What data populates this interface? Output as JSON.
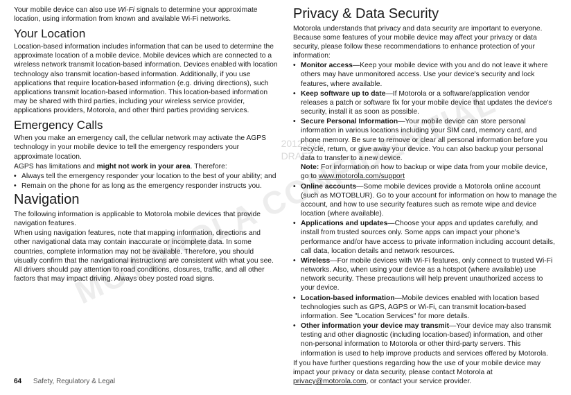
{
  "watermark": "MOTOROLA CONFIDENTIAL",
  "watermark_date": "2012.05.0",
  "watermark_draft": "DRAFT",
  "left": {
    "intro": "Your mobile device can also use Wi-Fi signals to determine your approximate location, using information from known and available Wi-Fi networks.",
    "loc_h": "Your Location",
    "loc_p": "Location-based information includes information that can be used to determine the approximate location of a mobile device. Mobile devices which are connected to a wireless network transmit location-based information. Devices enabled with location technology also transmit location-based information. Additionally, if you use applications that require location-based information (e.g. driving directions), such applications transmit location-based information. This location-based information may be shared with third parties, including your wireless service provider, applications providers, Motorola, and other third parties providing services.",
    "ec_h": "Emergency Calls",
    "ec_p1": "When you make an emergency call, the cellular network may activate the AGPS technology in your mobile device to tell the emergency responders your approximate location.",
    "ec_p2a": "AGPS has limitations and ",
    "ec_p2b": "might not work in your area",
    "ec_p2c": ". Therefore:",
    "ec_li1": "Always tell the emergency responder your location to the best of your ability; and",
    "ec_li2": "Remain on the phone for as long as the emergency responder instructs you.",
    "nav_h": "Navigation",
    "nav_p1": "The following information is applicable to Motorola mobile devices that provide navigation features.",
    "nav_p2": "When using navigation features, note that mapping information, directions and other navigational data may contain inaccurate or incomplete data. In some countries, complete information may not be available. Therefore, you should visually confirm that the navigational instructions are consistent with what you see. All drivers should pay attention to road conditions, closures, traffic, and all other factors that may impact driving. Always obey posted road signs."
  },
  "right": {
    "pds_h": "Privacy & Data Security",
    "pds_p": "Motorola understands that privacy and data security are important to everyone. Because some features of your mobile device may affect your privacy or data security, please follow these recommendations to enhance protection of your information:",
    "li1_b": "Monitor access",
    "li1_t": "—Keep your mobile device with you and do not leave it where others may have unmonitored access. Use your device's security and lock features, where available.",
    "li2_b": "Keep software up to date",
    "li2_t": "—If Motorola or a software/application vendor releases a patch or software fix for your mobile device that updates the device's security, install it as soon as possible.",
    "li3_b": "Secure Personal Information",
    "li3_t": "—Your mobile device can store personal information in various locations including your SIM card, memory card, and phone memory. Be sure to remove or clear all personal information before you recycle, return, or give away your device. You can also backup your personal data to transfer to a new device.",
    "li3_note_b": "Note:",
    "li3_note_t": " For information on how to backup or wipe data from your mobile device, go to ",
    "li3_link": "www.motorola.com/support",
    "li4_b": "Online accounts",
    "li4_t": "—Some mobile devices provide a Motorola online account (such as MOTOBLUR). Go to your account for information on how to manage the account, and how to use security features such as remote wipe and device location (where available).",
    "li5_b": "Applications and updates",
    "li5_t": "—Choose your apps and updates carefully, and install from trusted sources only. Some apps can impact your phone's performance and/or have access to private information including account details, call data, location details and network resources.",
    "li6_b": "Wireless",
    "li6_t": "—For mobile devices with Wi-Fi features, only connect to trusted Wi-Fi networks. Also, when using your device as a hotspot (where available) use network security. These precautions will help prevent unauthorized access to your device.",
    "li7_b": "Location-based information",
    "li7_t": "—Mobile devices enabled with location based technologies such as GPS, AGPS or Wi-Fi, can transmit location-based information. See \"Location Services\" for more details.",
    "li8_b": "Other information your device may transmit",
    "li8_t": "—Your device may also transmit testing and other diagnostic (including location-based) information, and other non-personal information to Motorola or other third-party servers. This information is used to help improve products and services offered by Motorola.",
    "closing_a": "If you have further questions regarding how the use of your mobile device may impact your privacy or data security, please contact Motorola at ",
    "closing_link": "privacy@motorola.com",
    "closing_b": ", or contact your service provider."
  },
  "footer": {
    "page": "64",
    "section": "Safety, Regulatory & Legal"
  }
}
